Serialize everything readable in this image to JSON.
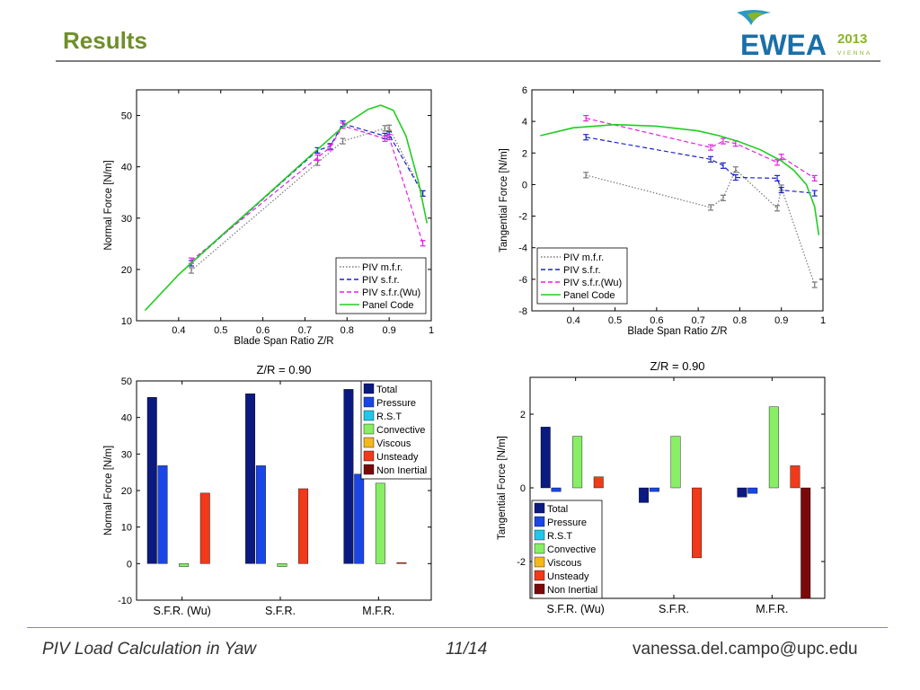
{
  "slide": {
    "title": "Results",
    "footer_left": "PIV  Load Calculation in Yaw",
    "footer_center": "11/14",
    "footer_right": "vanessa.del.campo@upc.edu"
  },
  "logo": {
    "text": "EWEA",
    "year": "2013",
    "city": "VIENNA",
    "colors": {
      "blue": "#1a6fa8",
      "green": "#8ab427",
      "teal": "#2a9bc4"
    }
  },
  "chart_data": [
    {
      "type": "line",
      "xlabel": "Blade Span Ratio Z/R",
      "ylabel": "Normal Force [N/m]",
      "xlim": [
        0.3,
        1.0
      ],
      "ylim": [
        10,
        55
      ],
      "xticks": [
        0.4,
        0.5,
        0.6,
        0.7,
        0.8,
        0.9,
        1
      ],
      "yticks": [
        10,
        20,
        30,
        40,
        50
      ],
      "legend_position": "bottom-right",
      "series": [
        {
          "name": "PIV m.f.r.",
          "color": "#777777",
          "dash": "1.5,2",
          "x": [
            0.43,
            0.73,
            0.79,
            0.89,
            0.9,
            0.98
          ],
          "y": [
            19.8,
            40.8,
            45.0,
            47.5,
            47.6,
            34.8
          ],
          "errorbars": true
        },
        {
          "name": "PIV s.f.r.",
          "color": "#1a24c8",
          "dash": "5,3",
          "x": [
            0.43,
            0.73,
            0.76,
            0.79,
            0.89,
            0.9,
            0.98
          ],
          "y": [
            21.2,
            43.2,
            44.0,
            48.4,
            46.0,
            46.3,
            34.8
          ],
          "errorbars": true
        },
        {
          "name": "PIV s.f.r.(Wu)",
          "color": "#e020e0",
          "dash": "5,3",
          "x": [
            0.43,
            0.73,
            0.76,
            0.79,
            0.89,
            0.9,
            0.98
          ],
          "y": [
            21.7,
            41.8,
            43.8,
            48.0,
            45.5,
            45.8,
            25.1
          ],
          "errorbars": true
        },
        {
          "name": "Panel Code",
          "color": "#22cc22",
          "dash": "",
          "x": [
            0.32,
            0.4,
            0.5,
            0.6,
            0.7,
            0.8,
            0.85,
            0.88,
            0.91,
            0.94,
            0.97,
            0.99
          ],
          "y": [
            12.0,
            19.0,
            26.5,
            33.8,
            41.2,
            48.5,
            51.2,
            52.0,
            51.0,
            46.0,
            37.0,
            29.0
          ],
          "errorbars": false
        }
      ]
    },
    {
      "type": "line",
      "xlabel": "Blade Span Ratio Z/R",
      "ylabel": "Tangential Force [N/m]",
      "xlim": [
        0.3,
        1.0
      ],
      "ylim": [
        -8,
        6
      ],
      "xticks": [
        0.4,
        0.5,
        0.6,
        0.7,
        0.8,
        0.9,
        1
      ],
      "yticks": [
        -8,
        -6,
        -4,
        -2,
        0,
        2,
        4,
        6
      ],
      "legend_position": "bottom-left",
      "series": [
        {
          "name": "PIV m.f.r.",
          "color": "#777777",
          "dash": "1.5,2",
          "x": [
            0.43,
            0.73,
            0.76,
            0.79,
            0.89,
            0.9,
            0.98
          ],
          "y": [
            0.6,
            -1.45,
            -0.85,
            0.95,
            -1.5,
            -0.2,
            -6.35
          ],
          "errorbars": true
        },
        {
          "name": "PIV s.f.r.",
          "color": "#1a24c8",
          "dash": "5,3",
          "x": [
            0.43,
            0.73,
            0.76,
            0.79,
            0.89,
            0.9,
            0.98
          ],
          "y": [
            3.0,
            1.6,
            1.2,
            0.45,
            0.4,
            -0.35,
            -0.55
          ],
          "errorbars": true
        },
        {
          "name": "PIV s.f.r.(Wu)",
          "color": "#e020e0",
          "dash": "5,3",
          "x": [
            0.43,
            0.73,
            0.76,
            0.79,
            0.89,
            0.9,
            0.98
          ],
          "y": [
            4.2,
            2.35,
            2.75,
            2.6,
            1.4,
            1.75,
            0.4
          ],
          "errorbars": true
        },
        {
          "name": "Panel Code",
          "color": "#22cc22",
          "dash": "",
          "x": [
            0.32,
            0.4,
            0.5,
            0.6,
            0.7,
            0.75,
            0.8,
            0.85,
            0.9,
            0.93,
            0.96,
            0.98,
            0.99
          ],
          "y": [
            3.1,
            3.6,
            3.8,
            3.7,
            3.4,
            3.1,
            2.7,
            2.2,
            1.5,
            0.9,
            0.0,
            -1.4,
            -3.2
          ],
          "errorbars": false
        }
      ]
    },
    {
      "type": "bar",
      "title": "Z/R = 0.90",
      "ylabel": "Normal Force [N/m]",
      "categories": [
        "S.F.R. (Wu)",
        "S.F.R.",
        "M.F.R."
      ],
      "ylim": [
        -10,
        50
      ],
      "yticks": [
        -10,
        0,
        10,
        20,
        30,
        40,
        50
      ],
      "legend_position": "top-right",
      "series": [
        {
          "name": "Total",
          "color": "#0a1a80",
          "values": [
            45.5,
            46.5,
            47.7
          ]
        },
        {
          "name": "Pressure",
          "color": "#1a46e8",
          "values": [
            26.8,
            26.8,
            24.5
          ]
        },
        {
          "name": "R.S.T",
          "color": "#20c8e8",
          "values": [
            0,
            0,
            0
          ]
        },
        {
          "name": "Convective",
          "color": "#88ee66",
          "values": [
            -0.8,
            -0.8,
            22.0
          ]
        },
        {
          "name": "Viscous",
          "color": "#f4b81c",
          "values": [
            0,
            0,
            0
          ]
        },
        {
          "name": "Unsteady",
          "color": "#f03a1a",
          "values": [
            19.3,
            20.5,
            0.3
          ]
        },
        {
          "name": "Non Inertial",
          "color": "#7a0a0a",
          "values": [
            0,
            0,
            0
          ]
        }
      ]
    },
    {
      "type": "bar",
      "title": "Z/R = 0.90",
      "ylabel": "Tangential Force [N/m]",
      "categories": [
        "S.F.R. (Wu)",
        "S.F.R.",
        "M.F.R."
      ],
      "ylim": [
        -3,
        3
      ],
      "yticks": [
        -2,
        0,
        2
      ],
      "legend_position": "bottom-left",
      "series": [
        {
          "name": "Total",
          "color": "#0a1a80",
          "values": [
            1.65,
            -0.4,
            -0.25
          ]
        },
        {
          "name": "Pressure",
          "color": "#1a46e8",
          "values": [
            -0.1,
            -0.1,
            -0.15
          ]
        },
        {
          "name": "R.S.T",
          "color": "#20c8e8",
          "values": [
            0,
            0,
            0
          ]
        },
        {
          "name": "Convective",
          "color": "#88ee66",
          "values": [
            1.4,
            1.4,
            2.2
          ]
        },
        {
          "name": "Viscous",
          "color": "#f4b81c",
          "values": [
            0,
            0,
            0
          ]
        },
        {
          "name": "Unsteady",
          "color": "#f03a1a",
          "values": [
            0.3,
            -1.9,
            0.6
          ]
        },
        {
          "name": "Non Inertial",
          "color": "#7a0a0a",
          "values": [
            0,
            0,
            -3.0
          ]
        }
      ]
    }
  ]
}
